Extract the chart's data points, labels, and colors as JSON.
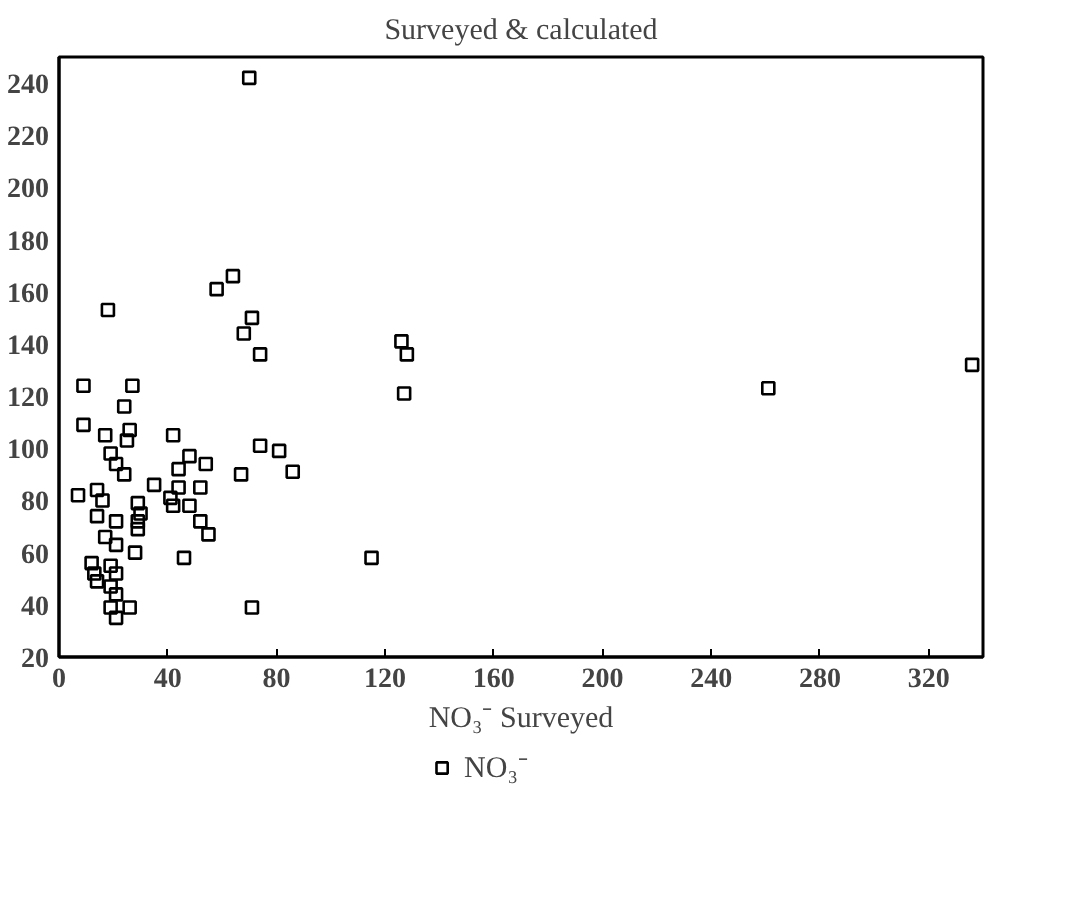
{
  "chart_data": {
    "type": "scatter",
    "title": "Surveyed & calculated",
    "xlabel": "NO₃⁻ Surveyed",
    "xlim": [
      0,
      340
    ],
    "ylim": [
      20,
      250
    ],
    "xticks": [
      0,
      40,
      80,
      120,
      160,
      200,
      240,
      280,
      320
    ],
    "yticks": [
      20,
      40,
      60,
      80,
      100,
      120,
      140,
      160,
      180,
      200,
      220,
      240
    ],
    "grid": false,
    "legend": "bottom",
    "marker": "square",
    "series": [
      {
        "name": "NO₃⁻",
        "color": "#000000",
        "x": [
          70,
          18,
          58,
          64,
          71,
          68,
          74,
          126,
          128,
          336,
          127,
          261,
          115,
          9,
          27,
          24,
          9,
          17,
          26,
          25,
          42,
          19,
          21,
          24,
          48,
          54,
          44,
          74,
          81,
          67,
          86,
          35,
          44,
          52,
          7,
          14,
          41,
          16,
          42,
          48,
          29,
          30,
          14,
          29,
          21,
          52,
          55,
          29,
          17,
          21,
          28,
          46,
          12,
          19,
          13,
          21,
          14,
          19,
          21,
          26,
          19,
          21,
          71
        ],
        "values": [
          242,
          153,
          161,
          166,
          150,
          144,
          136,
          141,
          136,
          132,
          121,
          123,
          58,
          124,
          124,
          116,
          109,
          105,
          107,
          103,
          105,
          98,
          94,
          90,
          97,
          94,
          92,
          101,
          99,
          90,
          91,
          86,
          85,
          85,
          82,
          84,
          81,
          80,
          78,
          78,
          79,
          75,
          74,
          72,
          72,
          72,
          67,
          69,
          66,
          63,
          60,
          58,
          56,
          55,
          52,
          52,
          49,
          47,
          44,
          39,
          39,
          35,
          39
        ]
      }
    ]
  }
}
